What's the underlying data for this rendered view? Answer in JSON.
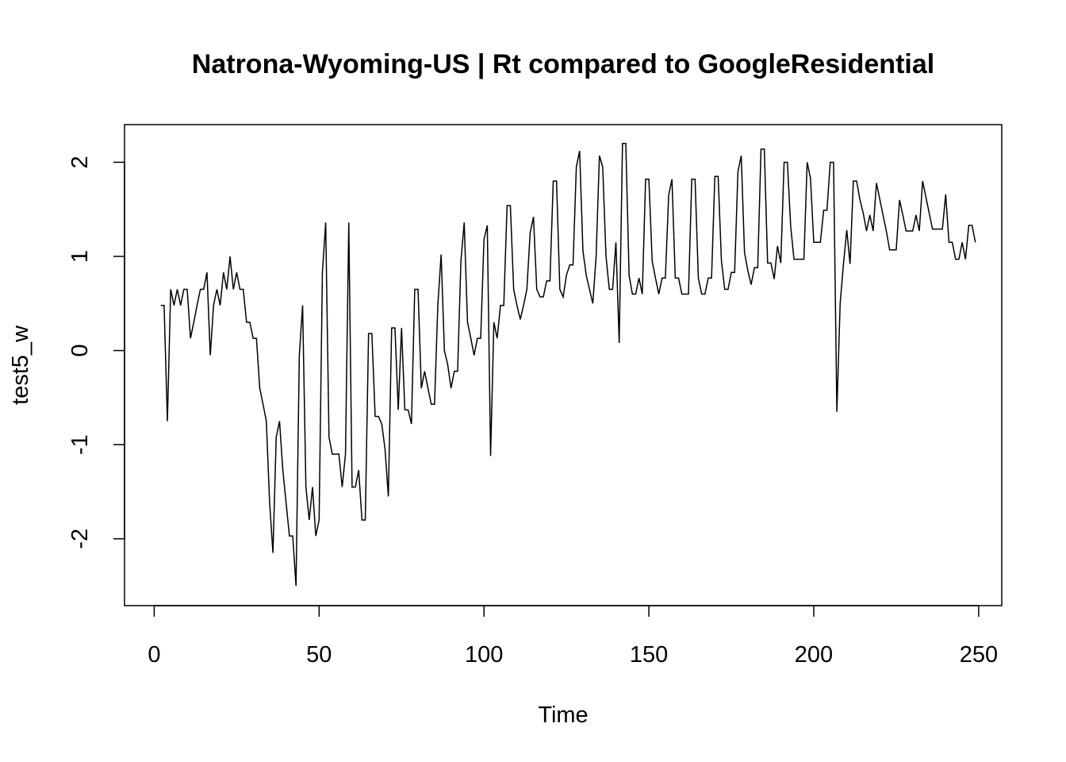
{
  "chart_data": {
    "type": "line",
    "title": "Natrona-Wyoming-US | Rt compared to GoogleResidential",
    "xlabel": "Time",
    "ylabel": "test5_w",
    "xlim": [
      -9,
      257
    ],
    "ylim": [
      -2.71,
      2.4
    ],
    "x_ticks": [
      0,
      50,
      100,
      150,
      200,
      250
    ],
    "y_ticks": [
      -2,
      -1,
      0,
      1,
      2
    ],
    "x_tick_labels": [
      "0",
      "50",
      "100",
      "150",
      "200",
      "250"
    ],
    "y_tick_labels": [
      "-2",
      "-1",
      "0",
      "1",
      "2"
    ],
    "grid": false,
    "line_color": "#000000",
    "series": [
      {
        "x_start": 2,
        "values": [
          0.48,
          0.48,
          -0.75,
          0.65,
          0.48,
          0.65,
          0.48,
          0.65,
          0.65,
          0.13,
          0.3,
          0.48,
          0.65,
          0.65,
          0.83,
          -0.05,
          0.48,
          0.65,
          0.48,
          0.83,
          0.65,
          1.0,
          0.65,
          0.83,
          0.65,
          0.65,
          0.3,
          0.3,
          0.13,
          0.13,
          -0.4,
          -0.57,
          -0.75,
          -1.62,
          -2.15,
          -0.92,
          -0.75,
          -1.27,
          -1.62,
          -1.97,
          -1.97,
          -2.5,
          -0.05,
          0.48,
          -1.45,
          -1.8,
          -1.45,
          -1.97,
          -1.8,
          0.83,
          1.36,
          -0.92,
          -1.1,
          -1.1,
          -1.1,
          -1.45,
          -1.1,
          1.36,
          -1.45,
          -1.45,
          -1.27,
          -1.8,
          -1.8,
          0.18,
          0.18,
          -0.7,
          -0.7,
          -0.78,
          -1.05,
          -1.55,
          0.24,
          0.24,
          -0.63,
          0.24,
          -0.63,
          -0.63,
          -0.78,
          0.65,
          0.65,
          -0.4,
          -0.22,
          -0.4,
          -0.57,
          -0.57,
          0.48,
          1.02,
          0.0,
          -0.15,
          -0.4,
          -0.22,
          -0.22,
          0.95,
          1.36,
          0.3,
          0.13,
          -0.05,
          0.13,
          0.13,
          1.18,
          1.33,
          -1.12,
          0.3,
          0.13,
          0.48,
          0.48,
          1.54,
          1.54,
          0.65,
          0.48,
          0.33,
          0.48,
          0.65,
          1.25,
          1.42,
          0.65,
          0.57,
          0.57,
          0.74,
          0.74,
          1.8,
          1.8,
          0.65,
          0.57,
          0.8,
          0.91,
          0.91,
          1.95,
          2.12,
          1.06,
          0.8,
          0.65,
          0.5,
          1.0,
          2.07,
          1.95,
          1.0,
          0.65,
          0.65,
          1.15,
          0.08,
          2.2,
          2.2,
          0.8,
          0.6,
          0.6,
          0.77,
          0.6,
          1.82,
          1.82,
          0.95,
          0.77,
          0.6,
          0.77,
          0.77,
          1.65,
          1.82,
          0.77,
          0.77,
          0.6,
          0.6,
          0.6,
          1.82,
          1.82,
          0.77,
          0.6,
          0.6,
          0.77,
          0.77,
          1.85,
          1.85,
          0.95,
          0.65,
          0.65,
          0.83,
          0.83,
          1.9,
          2.07,
          1.04,
          0.85,
          0.7,
          0.88,
          0.88,
          2.14,
          2.14,
          0.93,
          0.93,
          0.76,
          1.11,
          0.93,
          2.0,
          2.0,
          1.32,
          0.97,
          0.97,
          0.97,
          0.97,
          2.0,
          1.83,
          1.15,
          1.15,
          1.15,
          1.49,
          1.49,
          2.0,
          2.0,
          -0.65,
          0.5,
          0.92,
          1.28,
          0.92,
          1.8,
          1.8,
          1.6,
          1.46,
          1.27,
          1.44,
          1.27,
          1.78,
          1.61,
          1.44,
          1.27,
          1.07,
          1.07,
          1.07,
          1.6,
          1.44,
          1.27,
          1.27,
          1.27,
          1.44,
          1.27,
          1.8,
          1.63,
          1.46,
          1.29,
          1.29,
          1.29,
          1.29,
          1.66,
          1.15,
          1.15,
          0.97,
          0.97,
          1.15,
          0.97,
          1.33,
          1.33,
          1.15
        ]
      }
    ]
  }
}
